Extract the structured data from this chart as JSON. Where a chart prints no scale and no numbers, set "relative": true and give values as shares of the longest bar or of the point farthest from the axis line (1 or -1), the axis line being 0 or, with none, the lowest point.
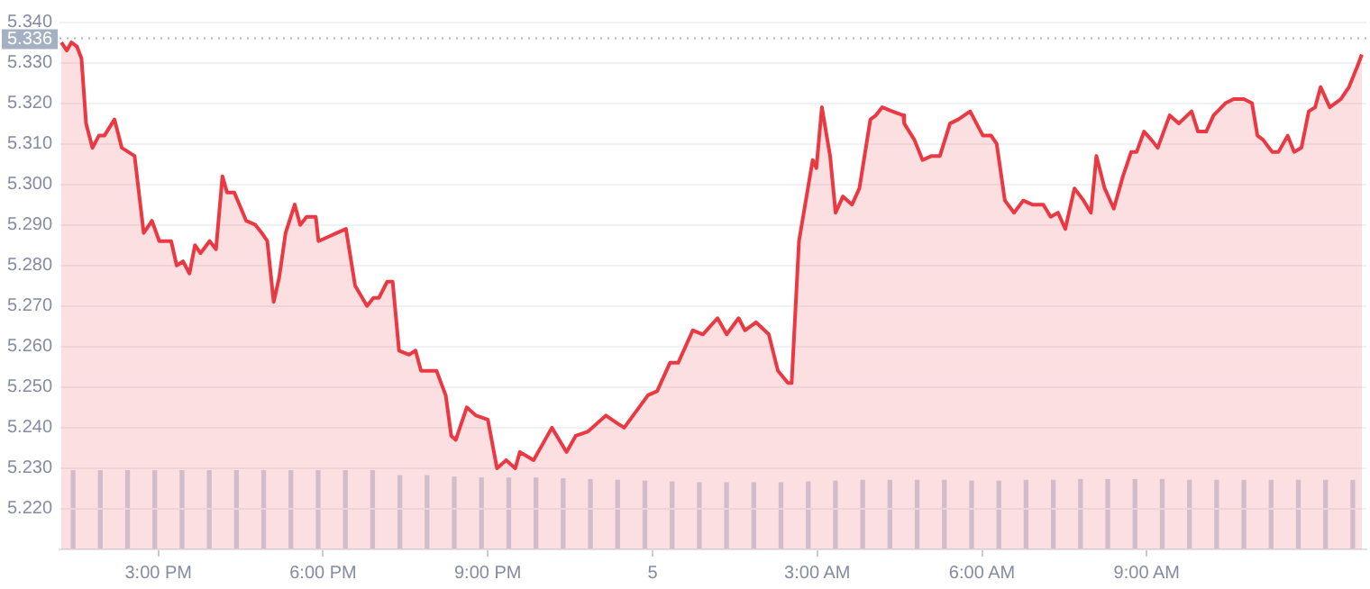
{
  "chart_data": [
    {
      "type": "area",
      "xlim": [
        "--01-04T13:12",
        "--01-05T13:00"
      ],
      "ylim": [
        5.21,
        5.341
      ],
      "xticks": [
        {
          "value": "--01-04T15:00",
          "label": "3:00 PM"
        },
        {
          "value": "--01-04T18:00",
          "label": "6:00 PM"
        },
        {
          "value": "--01-04T21:00",
          "label": "9:00 PM"
        },
        {
          "value": "--01-05T00:00",
          "label": "5"
        },
        {
          "value": "--01-05T03:00",
          "label": "3:00 AM"
        },
        {
          "value": "--01-05T06:00",
          "label": "6:00 AM"
        },
        {
          "value": "--01-05T09:00",
          "label": "9:00 AM"
        }
      ],
      "yticks": [
        {
          "value": 5.22,
          "label": "5.220"
        },
        {
          "value": 5.23,
          "label": "5.230"
        },
        {
          "value": 5.24,
          "label": "5.240"
        },
        {
          "value": 5.25,
          "label": "5.250"
        },
        {
          "value": 5.26,
          "label": "5.260"
        },
        {
          "value": 5.27,
          "label": "5.270"
        },
        {
          "value": 5.28,
          "label": "5.280"
        },
        {
          "value": 5.29,
          "label": "5.290"
        },
        {
          "value": 5.3,
          "label": "5.300"
        },
        {
          "value": 5.31,
          "label": "5.310"
        },
        {
          "value": 5.32,
          "label": "5.320"
        },
        {
          "value": 5.33,
          "label": "5.330"
        },
        {
          "value": 5.34,
          "label": "5.340"
        }
      ],
      "grid": "y",
      "marker": "none",
      "line_style": "solid",
      "ref_lines": [
        {
          "axis": "y",
          "value": 5.336,
          "label": "5.336",
          "color": "#a6b0c3",
          "line_style": "dotted"
        }
      ],
      "series": [
        {
          "color": "#ea3943",
          "x": [
            "--01-04T13:14",
            "--01-04T13:20",
            "--01-04T13:25",
            "--01-04T13:31",
            "--01-04T13:36",
            "--01-04T13:41",
            "--01-04T13:48",
            "--01-04T13:55",
            "--01-04T14:01",
            "--01-04T14:12",
            "--01-04T14:20",
            "--01-04T14:34",
            "--01-04T14:44",
            "--01-04T14:53",
            "--01-04T15:01",
            "--01-04T15:14",
            "--01-04T15:20",
            "--01-04T15:27",
            "--01-04T15:34",
            "--01-04T15:40",
            "--01-04T15:46",
            "--01-04T15:56",
            "--01-04T16:03",
            "--01-04T16:10",
            "--01-04T16:15",
            "--01-04T16:23",
            "--01-04T16:36",
            "--01-04T16:46",
            "--01-04T16:53",
            "--01-04T16:59",
            "--01-04T17:06",
            "--01-04T17:12",
            "--01-04T17:19",
            "--01-04T17:29",
            "--01-04T17:35",
            "--01-04T17:42",
            "--01-04T17:52",
            "--01-04T17:55",
            "--01-04T18:05",
            "--01-04T18:15",
            "--01-04T18:25",
            "--01-04T18:35",
            "--01-04T18:48",
            "--01-04T18:55",
            "--01-04T19:01",
            "--01-04T19:10",
            "--01-04T19:16",
            "--01-04T19:23",
            "--01-04T19:34",
            "--01-04T19:41",
            "--01-04T19:47",
            "--01-04T20:04",
            "--01-04T20:14",
            "--01-04T20:20",
            "--01-04T20:25",
            "--01-04T20:37",
            "--01-04T20:47",
            "--01-04T21:00",
            "--01-04T21:10",
            "--01-04T21:20",
            "--01-04T21:30",
            "--01-04T21:35",
            "--01-04T21:50",
            "--01-04T22:10",
            "--01-04T22:26",
            "--01-04T22:36",
            "--01-04T22:49",
            "--01-04T23:09",
            "--01-04T23:22",
            "--01-04T23:29",
            "--01-04T23:42",
            "--01-04T23:55",
            "--01-05T00:05",
            "--01-05T00:19",
            "--01-05T00:28",
            "--01-05T00:44",
            "--01-05T00:55",
            "--01-05T01:11",
            "--01-05T01:21",
            "--01-05T01:34",
            "--01-05T01:41",
            "--01-05T01:53",
            "--01-05T02:07",
            "--01-05T02:17",
            "--01-05T02:28",
            "--01-05T02:32",
            "--01-05T02:40",
            "--01-05T02:46",
            "--01-05T02:55",
            "--01-05T02:59",
            "--01-05T03:05",
            "--01-05T03:14",
            "--01-05T03:20",
            "--01-05T03:28",
            "--01-05T03:38",
            "--01-05T03:46",
            "--01-05T03:58",
            "--01-05T04:04",
            "--01-05T04:11",
            "--01-05T04:22",
            "--01-05T04:34",
            "--01-05T04:35",
            "--01-05T04:46",
            "--01-05T04:55",
            "--01-05T05:05",
            "--01-05T05:14",
            "--01-05T05:25",
            "--01-05T05:34",
            "--01-05T05:47",
            "--01-05T06:01",
            "--01-05T06:10",
            "--01-05T06:16",
            "--01-05T06:25",
            "--01-05T06:35",
            "--01-05T06:45",
            "--01-05T06:55",
            "--01-05T07:07",
            "--01-05T07:15",
            "--01-05T07:23",
            "--01-05T07:31",
            "--01-05T07:41",
            "--01-05T07:51",
            "--01-05T07:59",
            "--01-05T08:05",
            "--01-05T08:14",
            "--01-05T08:24",
            "--01-05T08:34",
            "--01-05T08:43",
            "--01-05T08:49",
            "--01-05T08:57",
            "--01-05T09:05",
            "--01-05T09:12",
            "--01-05T09:25",
            "--01-05T09:35",
            "--01-05T09:49",
            "--01-05T09:56",
            "--01-05T10:05",
            "--01-05T10:13",
            "--01-05T10:26",
            "--01-05T10:35",
            "--01-05T10:46",
            "--01-05T10:55",
            "--01-05T11:01",
            "--01-05T11:07",
            "--01-05T11:17",
            "--01-05T11:24",
            "--01-05T11:34",
            "--01-05T11:41",
            "--01-05T11:49",
            "--01-05T11:57",
            "--01-05T12:04",
            "--01-05T12:10",
            "--01-05T12:20",
            "--01-05T12:32",
            "--01-05T12:41",
            "--01-05T12:50",
            "--01-05T12:55"
          ],
          "values": [
            5.335,
            5.333,
            5.335,
            5.334,
            5.331,
            5.315,
            5.309,
            5.312,
            5.312,
            5.316,
            5.309,
            5.307,
            5.288,
            5.291,
            5.286,
            5.286,
            5.28,
            5.281,
            5.278,
            5.285,
            5.283,
            5.286,
            5.284,
            5.302,
            5.298,
            5.298,
            5.291,
            5.29,
            5.288,
            5.286,
            5.271,
            5.277,
            5.288,
            5.295,
            5.29,
            5.292,
            5.292,
            5.286,
            5.287,
            5.288,
            5.289,
            5.275,
            5.27,
            5.272,
            5.272,
            5.276,
            5.276,
            5.259,
            5.258,
            5.259,
            5.254,
            5.254,
            5.248,
            5.238,
            5.237,
            5.245,
            5.243,
            5.242,
            5.23,
            5.232,
            5.23,
            5.234,
            5.232,
            5.24,
            5.234,
            5.238,
            5.239,
            5.243,
            5.241,
            5.24,
            5.244,
            5.248,
            5.249,
            5.256,
            5.256,
            5.264,
            5.263,
            5.267,
            5.263,
            5.267,
            5.264,
            5.266,
            5.263,
            5.254,
            5.251,
            5.251,
            5.286,
            5.294,
            5.306,
            5.304,
            5.319,
            5.307,
            5.293,
            5.297,
            5.295,
            5.299,
            5.316,
            5.317,
            5.319,
            5.318,
            5.317,
            5.315,
            5.311,
            5.306,
            5.307,
            5.307,
            5.315,
            5.316,
            5.318,
            5.312,
            5.312,
            5.31,
            5.296,
            5.293,
            5.296,
            5.295,
            5.295,
            5.292,
            5.293,
            5.289,
            5.299,
            5.296,
            5.293,
            5.307,
            5.299,
            5.294,
            5.302,
            5.308,
            5.308,
            5.313,
            5.311,
            5.309,
            5.317,
            5.315,
            5.318,
            5.313,
            5.313,
            5.317,
            5.32,
            5.321,
            5.321,
            5.32,
            5.312,
            5.311,
            5.308,
            5.308,
            5.312,
            5.308,
            5.309,
            5.318,
            5.319,
            5.324,
            5.319,
            5.321,
            5.324,
            5.329,
            5.332
          ]
        }
      ]
    },
    {
      "type": "bar",
      "relative": true,
      "color": "#cfd6e4",
      "categories": [
        null,
        null,
        null,
        null,
        null,
        null,
        null,
        null,
        null,
        null,
        null,
        null,
        null,
        null,
        null,
        null,
        null,
        null,
        null,
        null,
        null,
        null,
        null,
        null,
        null,
        null,
        null,
        null,
        null,
        null,
        null,
        null,
        null,
        null,
        null,
        null,
        null,
        null,
        null,
        null,
        null,
        null,
        null,
        null,
        null,
        null,
        null,
        null
      ],
      "values": [
        1,
        1,
        1,
        1,
        1,
        1,
        1,
        1,
        1,
        1,
        1,
        1,
        0.93,
        0.93,
        0.91,
        0.9,
        0.9,
        0.9,
        0.89,
        0.88,
        0.87,
        0.86,
        0.85,
        0.84,
        0.84,
        0.84,
        0.84,
        0.85,
        0.86,
        0.87,
        0.87,
        0.87,
        0.87,
        0.86,
        0.86,
        0.87,
        0.87,
        0.88,
        0.88,
        0.88,
        0.88,
        0.87,
        0.87,
        0.87,
        0.87,
        0.87,
        0.87,
        0.87
      ]
    }
  ]
}
